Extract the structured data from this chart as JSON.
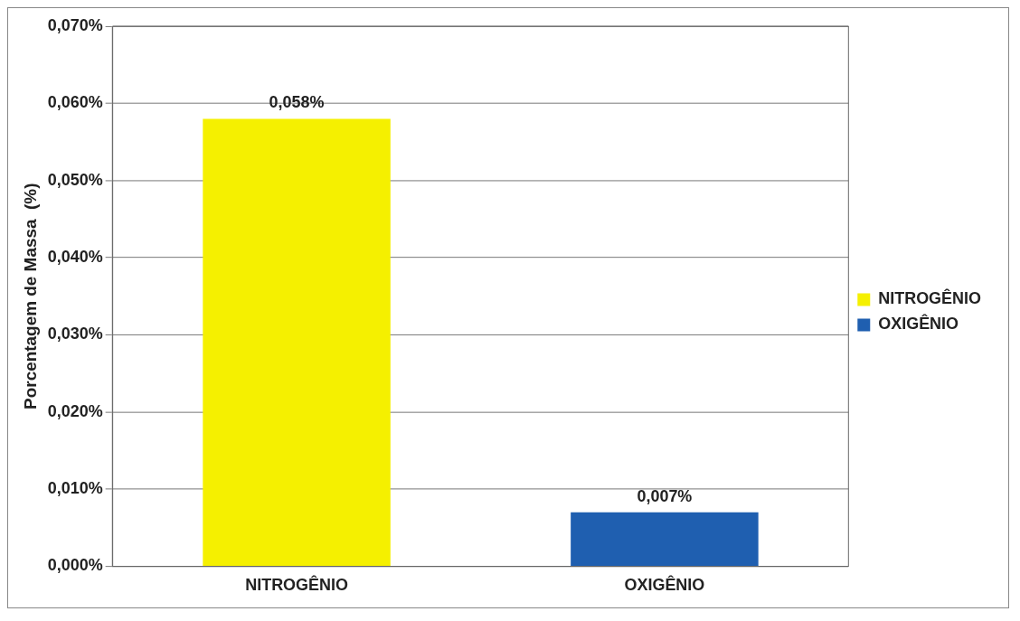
{
  "chart_data": {
    "type": "bar",
    "categories": [
      "NITROGÊNIO",
      "OXIGÊNIO"
    ],
    "series": [
      {
        "name": "NITROGÊNIO",
        "color": "#f5f000",
        "values": [
          0.058,
          null
        ],
        "value_labels": [
          "0,058%",
          null
        ]
      },
      {
        "name": "OXIGÊNIO",
        "color": "#1f5fb0",
        "values": [
          null,
          0.007
        ],
        "value_labels": [
          null,
          "0,007%"
        ]
      }
    ],
    "ylabel": "Porcentagem de Massa  (%)",
    "ylim": [
      0,
      0.07
    ],
    "yticks": [
      {
        "value": 0,
        "label": "0,000%"
      },
      {
        "value": 0.01,
        "label": "0,010%"
      },
      {
        "value": 0.02,
        "label": "0,020%"
      },
      {
        "value": 0.03,
        "label": "0,030%"
      },
      {
        "value": 0.04,
        "label": "0,040%"
      },
      {
        "value": 0.05,
        "label": "0,050%"
      },
      {
        "value": 0.06,
        "label": "0,060%"
      },
      {
        "value": 0.07,
        "label": "0,070%"
      }
    ],
    "grid": "y",
    "legend": "right"
  }
}
